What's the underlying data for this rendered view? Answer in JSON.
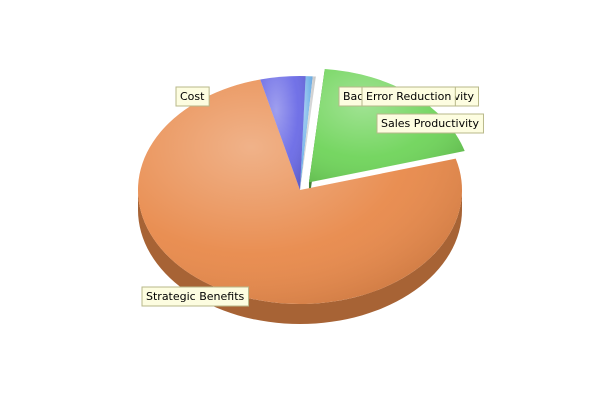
{
  "chart_data": {
    "type": "pie",
    "title": "",
    "legend": "none",
    "slices": [
      {
        "label": "Back Office Productivity",
        "value": 0.7,
        "color": "#6fb0e8"
      },
      {
        "label": "Error Reduction",
        "value": 0.3,
        "color": "#d0d0d0"
      },
      {
        "label": "Sales Productivity",
        "value": 19.0,
        "color": "#6fd45a"
      },
      {
        "label": "Strategic Benefits",
        "value": 75.5,
        "color": "#e8894a"
      },
      {
        "label": "Cost",
        "value": 4.5,
        "color": "#6b6be6"
      }
    ]
  }
}
